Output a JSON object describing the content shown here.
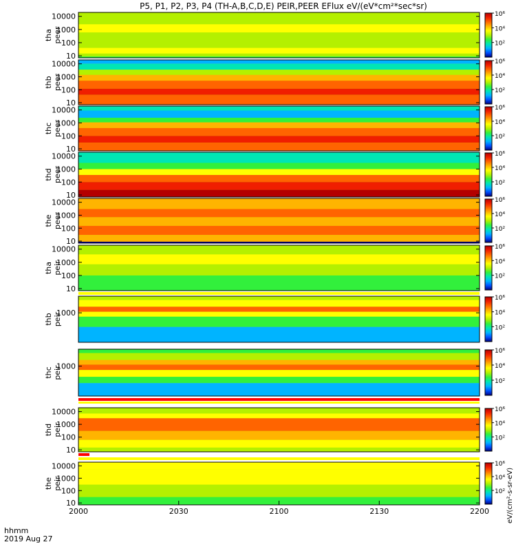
{
  "title": "P5, P1, P2, P3, P4 (TH-A,B,C,D,E) PEIR,PEER EFlux eV/(eV*cm²*sec*sr)",
  "colors": {
    "scale": [
      "#000080",
      "#0050ff",
      "#00b4ff",
      "#00e6b4",
      "#32f03c",
      "#b4f000",
      "#ffff00",
      "#ffb400",
      "#ff6400",
      "#f01e00",
      "#b40000"
    ],
    "gap_red": "#ff0000",
    "gap_yellow": "#ffff00",
    "no_data": "#000000"
  },
  "chart_data": {
    "type": "heatmap",
    "x_unit_label": "hhmm",
    "date_label": "2019 Aug 27",
    "x_ticks": [
      "2000",
      "2030",
      "2100",
      "2130",
      "2200"
    ],
    "x_range": [
      "2000",
      "2200"
    ],
    "y_scale": "log",
    "colorbar": {
      "scale": "log",
      "unit_label": "eV/(cm²-s-sr-eV)",
      "tick_labels": [
        "10²",
        "10⁴",
        "10⁶"
      ],
      "range": [
        1,
        1000000
      ]
    },
    "panels": [
      {
        "probe": "tha",
        "product": "peer",
        "yrange": [
          7,
          20000
        ],
        "yticks": [
          "10000",
          "1000",
          "100",
          "10"
        ],
        "bands": [
          {
            "lo": 7,
            "hi": 20000,
            "level": 5
          },
          {
            "lo": 15,
            "hi": 2500,
            "level": 6
          },
          {
            "lo": 40,
            "hi": 600,
            "level": 5
          },
          {
            "lo": 7,
            "hi": 9,
            "level": 4
          }
        ]
      },
      {
        "probe": "thb",
        "product": "peer",
        "yrange": [
          7,
          20000
        ],
        "yticks": [
          "10000",
          "1000",
          "100",
          "10"
        ],
        "bands": [
          {
            "lo": 10000,
            "hi": 20000,
            "level": 2
          },
          {
            "lo": 3500,
            "hi": 10000,
            "level": 3
          },
          {
            "lo": 1400,
            "hi": 3500,
            "level": 5
          },
          {
            "lo": 500,
            "hi": 1400,
            "level": 7
          },
          {
            "lo": 120,
            "hi": 500,
            "level": 8
          },
          {
            "lo": 40,
            "hi": 120,
            "level": 9
          },
          {
            "lo": 7,
            "hi": 40,
            "level": 8
          }
        ]
      },
      {
        "probe": "thc",
        "product": "peer",
        "yrange": [
          7,
          20000
        ],
        "yticks": [
          "10000",
          "1000",
          "100",
          "10"
        ],
        "bands": [
          {
            "lo": 9000,
            "hi": 20000,
            "level": 3
          },
          {
            "lo": 2500,
            "hi": 9000,
            "level": 2
          },
          {
            "lo": 1100,
            "hi": 2500,
            "level": 4
          },
          {
            "lo": 400,
            "hi": 1100,
            "level": 7
          },
          {
            "lo": 100,
            "hi": 400,
            "level": 8
          },
          {
            "lo": 30,
            "hi": 100,
            "level": 9
          },
          {
            "lo": 7,
            "hi": 30,
            "level": 8
          }
        ]
      },
      {
        "probe": "thd",
        "product": "peer",
        "yrange": [
          7,
          20000
        ],
        "yticks": [
          "10000",
          "1000",
          "100",
          "10"
        ],
        "bands": [
          {
            "lo": 3000,
            "hi": 20000,
            "level": 3
          },
          {
            "lo": 1000,
            "hi": 3000,
            "level": 4
          },
          {
            "lo": 350,
            "hi": 1000,
            "level": 6
          },
          {
            "lo": 100,
            "hi": 350,
            "level": 8
          },
          {
            "lo": 25,
            "hi": 100,
            "level": 9
          },
          {
            "lo": 7,
            "hi": 25,
            "level": 10
          }
        ]
      },
      {
        "probe": "the",
        "product": "peer",
        "yrange": [
          7,
          20000
        ],
        "yticks": [
          "10000",
          "1000",
          "100",
          "10"
        ],
        "bands": [
          {
            "lo": 3000,
            "hi": 20000,
            "level": 7
          },
          {
            "lo": 700,
            "hi": 3000,
            "level": 8
          },
          {
            "lo": 150,
            "hi": 700,
            "level": 7
          },
          {
            "lo": 30,
            "hi": 150,
            "level": 8
          },
          {
            "lo": 9,
            "hi": 30,
            "level": 7
          },
          {
            "lo": 7,
            "hi": 9,
            "level": 0
          }
        ]
      },
      {
        "probe": "tha",
        "product": "peir",
        "yrange": [
          7,
          20000
        ],
        "yticks": [
          "10000",
          "1000",
          "100",
          "10"
        ],
        "bands": [
          {
            "lo": 4000,
            "hi": 20000,
            "level": 5
          },
          {
            "lo": 700,
            "hi": 4000,
            "level": 6
          },
          {
            "lo": 100,
            "hi": 700,
            "level": 5
          },
          {
            "lo": 7,
            "hi": 100,
            "level": 4
          }
        ]
      },
      {
        "probe": "thb",
        "product": "peir",
        "yrange": [
          5,
          20000
        ],
        "yticks": [
          "1000"
        ],
        "bands": [
          {
            "lo": 10000,
            "hi": 20000,
            "level": 5
          },
          {
            "lo": 3000,
            "hi": 10000,
            "level": 6
          },
          {
            "lo": 1200,
            "hi": 3000,
            "level": 8
          },
          {
            "lo": 500,
            "hi": 1200,
            "level": 6
          },
          {
            "lo": 80,
            "hi": 500,
            "level": 4
          },
          {
            "lo": 5,
            "hi": 80,
            "level": 2
          }
        ]
      },
      {
        "probe": "thc",
        "product": "peir",
        "yrange": [
          5,
          20000
        ],
        "yticks": [
          "1000"
        ],
        "bands": [
          {
            "lo": 10000,
            "hi": 20000,
            "level": 4
          },
          {
            "lo": 3000,
            "hi": 10000,
            "level": 5
          },
          {
            "lo": 1300,
            "hi": 3000,
            "level": 7
          },
          {
            "lo": 500,
            "hi": 1300,
            "level": 8
          },
          {
            "lo": 150,
            "hi": 500,
            "level": 6
          },
          {
            "lo": 50,
            "hi": 150,
            "level": 4
          },
          {
            "lo": 5,
            "hi": 50,
            "level": 2
          }
        ]
      },
      {
        "probe": "thd",
        "product": "peir",
        "yrange": [
          7,
          20000
        ],
        "yticks": [
          "10000",
          "1000",
          "100",
          "10"
        ],
        "bands": [
          {
            "lo": 7000,
            "hi": 20000,
            "level": 5
          },
          {
            "lo": 3000,
            "hi": 7000,
            "level": 6
          },
          {
            "lo": 300,
            "hi": 3000,
            "level": 8
          },
          {
            "lo": 60,
            "hi": 300,
            "level": 7
          },
          {
            "lo": 15,
            "hi": 60,
            "level": 6
          },
          {
            "lo": 7,
            "hi": 15,
            "level": 5
          }
        ]
      },
      {
        "probe": "the",
        "product": "peir",
        "yrange": [
          7,
          20000
        ],
        "yticks": [
          "10000",
          "1000",
          "100",
          "10"
        ],
        "bands": [
          {
            "lo": 5000,
            "hi": 20000,
            "level": 6
          },
          {
            "lo": 300,
            "hi": 5000,
            "level": 6
          },
          {
            "lo": 30,
            "hi": 300,
            "level": 5
          },
          {
            "lo": 7,
            "hi": 30,
            "level": 4
          }
        ]
      }
    ]
  }
}
